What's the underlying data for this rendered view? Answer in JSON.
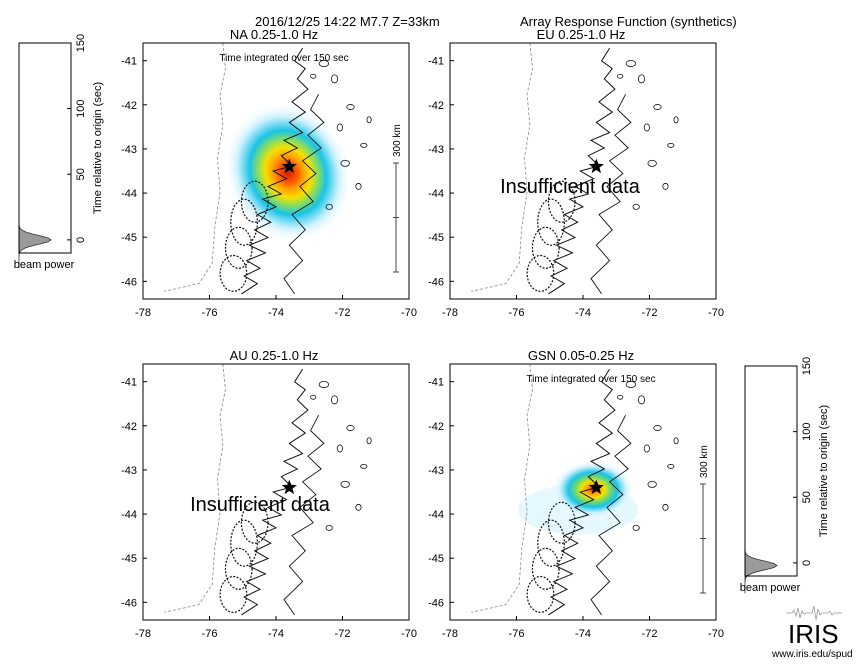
{
  "header": {
    "event": "2016/12/25 14:22  M7.7  Z=33km",
    "title": "Array Response Function (synthetics)"
  },
  "chart_data": {
    "type": "heatmap",
    "xticks": [
      "-78",
      "-76",
      "-74",
      "-72",
      "-70"
    ],
    "yticks": [
      "-41",
      "-42",
      "-43",
      "-44",
      "-45",
      "-46"
    ],
    "xlim": [
      -78,
      -70
    ],
    "ylim": [
      -46.4,
      -40.6
    ],
    "epicenter": {
      "lon": -73.6,
      "lat": -43.4
    },
    "panels": [
      {
        "id": "na",
        "label": "NA  0.25-1.0 Hz",
        "subtitle": "Time integrated over 150 sec",
        "scale_label": "300 km",
        "message": "",
        "has_data": true,
        "peak": {
          "lon": -73.7,
          "lat": -43.4
        },
        "spread": "wide"
      },
      {
        "id": "eu",
        "label": "EU  0.25-1.0 Hz",
        "subtitle": "",
        "scale_label": "",
        "message": "Insufficient data",
        "has_data": false
      },
      {
        "id": "au",
        "label": "AU  0.25-1.0 Hz",
        "subtitle": "",
        "scale_label": "",
        "message": "Insufficient data",
        "has_data": false
      },
      {
        "id": "gsn",
        "label": "GSN  0.05-0.25 Hz",
        "subtitle": "Time integrated over 150 sec",
        "scale_label": "300 km",
        "message": "",
        "has_data": true,
        "peak": {
          "lon": -73.7,
          "lat": -43.4
        },
        "spread": "narrow"
      }
    ],
    "beam_plots": [
      {
        "id": "beam-na",
        "ylabel": "Time relative to origin (sec)",
        "xlabel": "beam power",
        "ylim": [
          -10,
          150
        ],
        "yticks": [
          "0",
          "50",
          "100",
          "150"
        ],
        "peak_time": 0
      },
      {
        "id": "beam-gsn",
        "ylabel": "Time relative to origin (sec)",
        "xlabel": "beam power",
        "ylim": [
          -10,
          150
        ],
        "yticks": [
          "0",
          "50",
          "100",
          "150"
        ],
        "peak_time": -2
      }
    ]
  },
  "logo": {
    "text": "IRIS",
    "url": "www.iris.edu/spud"
  },
  "colors": {
    "axis": "#000000",
    "coast": "#111111",
    "border": "#888888",
    "heat_low": "#c8f0ff",
    "heat_mid": "#19c3e6",
    "heat_high": "#d21e00",
    "star": "#000000",
    "beam_fill": "#9a9a9a"
  }
}
